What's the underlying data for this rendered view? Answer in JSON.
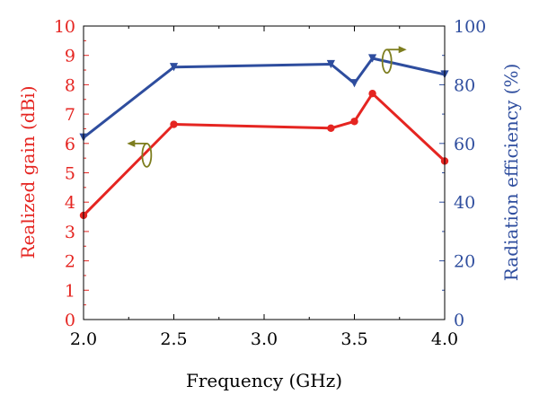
{
  "chart_data": {
    "type": "line",
    "xlabel": "Frequency (GHz)",
    "ylabel_left": "Realized gain (dBi)",
    "ylabel_right": "Radiation efficiency (%)",
    "xlim": [
      2.0,
      4.0
    ],
    "ylim_left": [
      0,
      10
    ],
    "ylim_right": [
      0,
      100
    ],
    "x_ticks": [
      "2.0",
      "2.5",
      "3.0",
      "3.5",
      "4.0"
    ],
    "y_left_ticks": [
      "0",
      "1",
      "2",
      "3",
      "4",
      "5",
      "6",
      "7",
      "8",
      "9",
      "10"
    ],
    "y_right_ticks": [
      "0",
      "20",
      "40",
      "60",
      "80",
      "100"
    ],
    "grid": false,
    "series": [
      {
        "axis": "left",
        "color": "#e52521",
        "marker": "circle",
        "x": [
          2.0,
          2.5,
          3.37,
          3.5,
          3.6,
          4.0
        ],
        "values": [
          3.55,
          6.65,
          6.52,
          6.75,
          7.7,
          5.4
        ]
      },
      {
        "axis": "right",
        "color": "#2e4d9e",
        "marker": "triangle-down",
        "x": [
          2.0,
          2.5,
          3.37,
          3.5,
          3.6,
          4.0
        ],
        "values": [
          62,
          86,
          87,
          80.5,
          89,
          83.5
        ]
      }
    ],
    "annotations": [
      {
        "type": "axis-indicator-arrow",
        "points_to": "left-axis",
        "color": "#7d7d1e",
        "x": 2.35,
        "y_left": 5.6
      },
      {
        "type": "axis-indicator-arrow",
        "points_to": "right-axis",
        "color": "#7d7d1e",
        "x": 3.68,
        "y_right": 88
      }
    ]
  }
}
